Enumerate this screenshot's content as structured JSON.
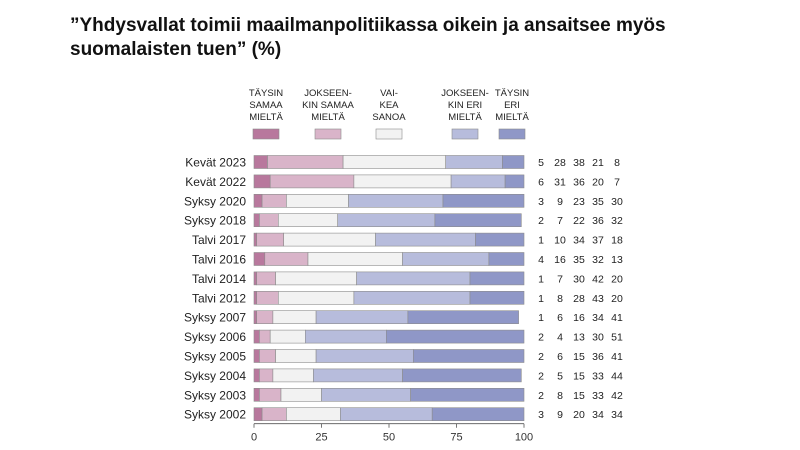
{
  "title": "”Yhdysvallat toimii maailmanpolitiikassa oikein ja ansaitsee myös suomalaisten tuen” (%)",
  "chart_data": {
    "type": "bar",
    "orientation": "horizontal",
    "stacked": true,
    "title": "”Yhdysvallat toimii maailmanpolitiikassa oikein ja ansaitsee myös suomalaisten tuen” (%)",
    "xlabel": "",
    "ylabel": "",
    "xlim": [
      0,
      100
    ],
    "xticks": [
      0,
      25,
      50,
      75,
      100
    ],
    "legend_position": "top",
    "categories": [
      "Kevät 2023",
      "Kevät 2022",
      "Syksy 2020",
      "Syksy 2018",
      "Talvi 2017",
      "Talvi 2016",
      "Talvi 2014",
      "Talvi 2012",
      "Syksy 2007",
      "Syksy 2006",
      "Syksy 2005",
      "Syksy 2004",
      "Syksy 2003",
      "Syksy 2002"
    ],
    "series": [
      {
        "name": [
          "TÄYSIN",
          "SAMAA",
          "MIELTÄ"
        ],
        "color": "#b8789d",
        "values": [
          5,
          6,
          3,
          2,
          1,
          4,
          1,
          1,
          1,
          2,
          2,
          2,
          2,
          3
        ]
      },
      {
        "name": [
          "JOKSEEN-",
          "KIN SAMAA",
          "MIELTÄ"
        ],
        "color": "#d9b4c9",
        "values": [
          28,
          31,
          9,
          7,
          10,
          16,
          7,
          8,
          6,
          4,
          6,
          5,
          8,
          9
        ]
      },
      {
        "name": [
          "VAI-",
          "KEA",
          "SANOA"
        ],
        "color": "#f2f2f2",
        "values": [
          38,
          36,
          23,
          22,
          34,
          35,
          30,
          28,
          16,
          13,
          15,
          15,
          15,
          20
        ]
      },
      {
        "name": [
          "JOKSEEN-",
          "KIN ERI",
          "MIELTÄ"
        ],
        "color": "#b7bcdc",
        "values": [
          21,
          20,
          35,
          36,
          37,
          32,
          42,
          43,
          34,
          30,
          36,
          33,
          33,
          34
        ]
      },
      {
        "name": [
          "TÄYSIN",
          "ERI",
          "MIELTÄ"
        ],
        "color": "#8f97c7",
        "values": [
          8,
          7,
          30,
          32,
          18,
          13,
          20,
          20,
          41,
          51,
          41,
          44,
          42,
          34
        ]
      }
    ]
  }
}
